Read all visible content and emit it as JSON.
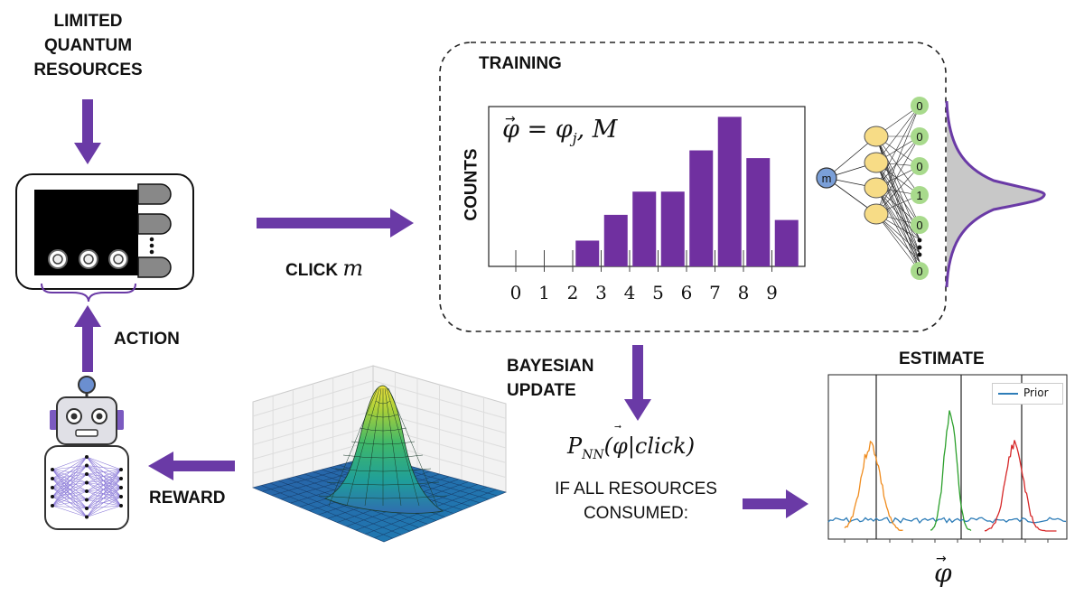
{
  "labels": {
    "limited_line1": "LIMITED",
    "limited_line2": "QUANTUM",
    "limited_line3": "RESOURCES",
    "action": "ACTION",
    "reward": "REWARD",
    "click_word": "CLICK",
    "click_var": "m",
    "training": "TRAINING",
    "counts": "COUNTS",
    "bayesian_line1": "BAYESIAN",
    "bayesian_line2": "UPDATE",
    "if_all_line1": "IF ALL RESOURCES",
    "if_all_line2": "CONSUMED:",
    "estimate": "ESTIMATE",
    "phi_symbol": "φ",
    "posterior": "P",
    "posterior_sub": "NN",
    "posterior_arg": "(φ|click)",
    "histogram_label": "φ = φ",
    "histogram_label_sub": "j",
    "histogram_label_tail": ", M"
  },
  "network": {
    "input_node": "m",
    "output_nodes": [
      "0",
      "0",
      "0",
      "1",
      "0",
      "0"
    ],
    "ellipsis": "⋮"
  },
  "colors": {
    "accent": "#6a3aa6",
    "bar": "#7030a0",
    "hidden_node": "#f7dc86",
    "output_node": "#a8da8c",
    "input_node": "#7a9fd8"
  },
  "chart_data": [
    {
      "type": "bar",
      "categories": [
        "0",
        "1",
        "2",
        "3",
        "4",
        "5",
        "6",
        "7",
        "8",
        "9"
      ],
      "values": [
        0,
        0,
        1.0,
        2.0,
        2.9,
        2.9,
        4.5,
        5.8,
        4.2,
        1.8
      ],
      "ylabel": "COUNTS",
      "xlabel": ""
    },
    {
      "type": "line",
      "legend": [
        "Prior"
      ],
      "xlabel": "φ",
      "series": [
        {
          "name": "Prior",
          "color": "#2e7db8"
        },
        {
          "color": "#f08c1e"
        },
        {
          "color": "#2ca02c"
        },
        {
          "color": "#d62728"
        }
      ]
    }
  ]
}
